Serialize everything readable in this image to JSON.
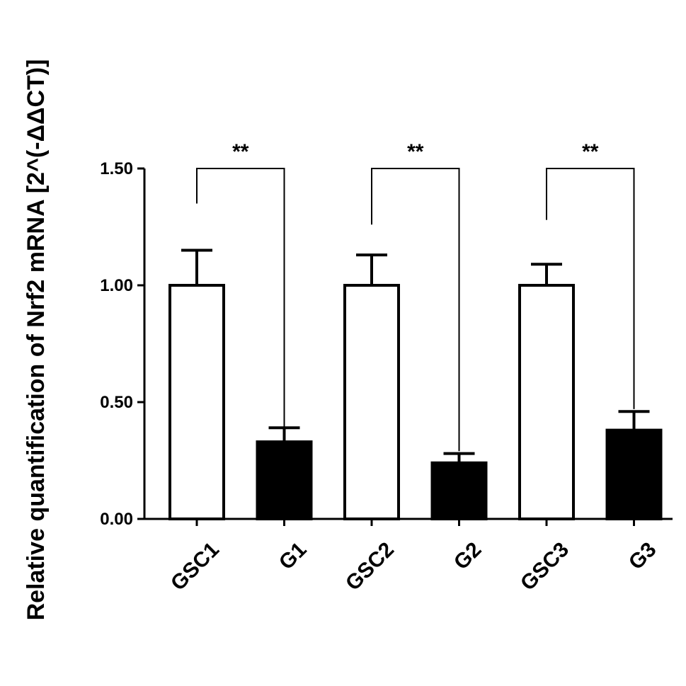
{
  "chart_data": {
    "type": "bar",
    "categories": [
      "GSC1",
      "G1",
      "GSC2",
      "G2",
      "GSC3",
      "G3"
    ],
    "values": [
      1.0,
      0.33,
      1.0,
      0.24,
      1.0,
      0.38
    ],
    "errors": [
      0.15,
      0.06,
      0.13,
      0.04,
      0.09,
      0.08
    ],
    "bar_fill": [
      "#ffffff",
      "#000000",
      "#ffffff",
      "#000000",
      "#ffffff",
      "#000000"
    ],
    "ylabel": "Relative quantification of Nrf2 mRNA [2^(-ΔΔCT)]",
    "xlabel": "",
    "ylim": [
      0,
      1.5
    ],
    "yticks": [
      0.0,
      0.5,
      1.0,
      1.5
    ],
    "ytick_labels": [
      "0.00",
      "0.50",
      "1.00",
      "1.50"
    ],
    "grid": false,
    "significance": [
      {
        "pair": [
          0,
          1
        ],
        "label": "**",
        "left_start": 1.35,
        "right_end": 0.39
      },
      {
        "pair": [
          2,
          3
        ],
        "label": "**",
        "left_start": 1.26,
        "right_end": 0.29
      },
      {
        "pair": [
          4,
          5
        ],
        "label": "**",
        "left_start": 1.28,
        "right_end": 0.47
      }
    ]
  }
}
